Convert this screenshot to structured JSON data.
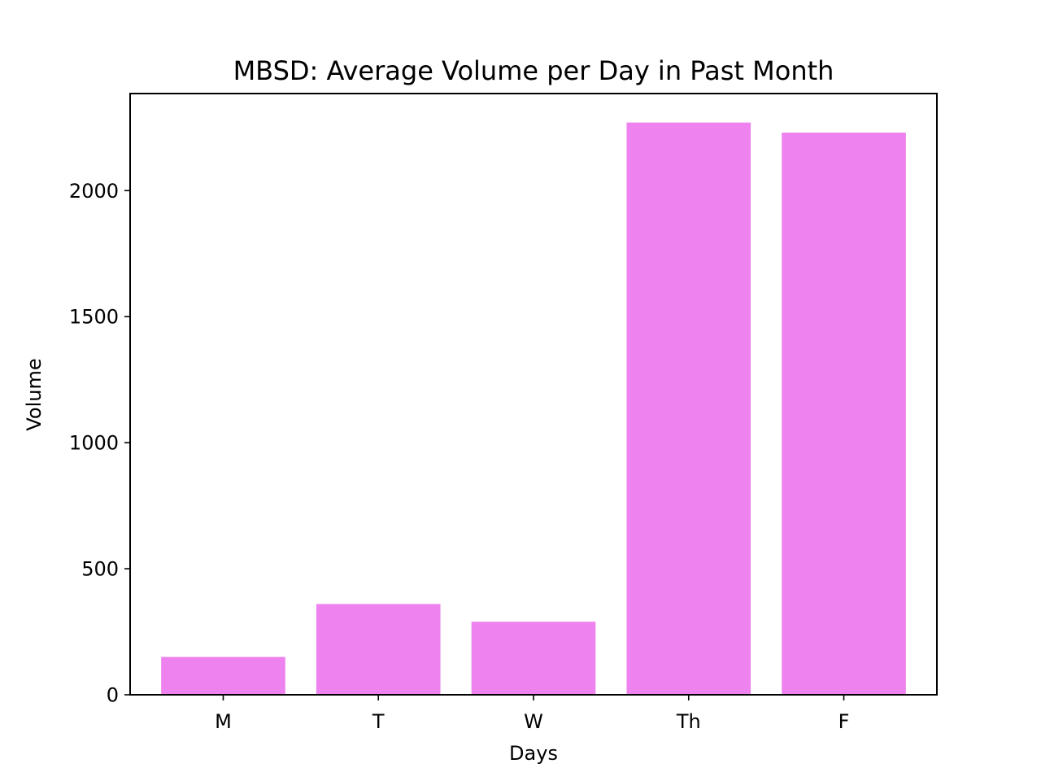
{
  "chart_data": {
    "type": "bar",
    "title": "MBSD: Average Volume per Day in Past Month",
    "xlabel": "Days",
    "ylabel": "Volume",
    "categories": [
      "M",
      "T",
      "W",
      "Th",
      "F"
    ],
    "values": [
      150,
      360,
      290,
      2270,
      2230
    ],
    "ylim": [
      0,
      2385
    ],
    "yticks": [
      0,
      500,
      1000,
      1500,
      2000
    ],
    "ytick_labels": [
      "0",
      "500",
      "1000",
      "1500",
      "2000"
    ],
    "bar_color": "#ee82ee",
    "grid": false,
    "legend": "none"
  }
}
